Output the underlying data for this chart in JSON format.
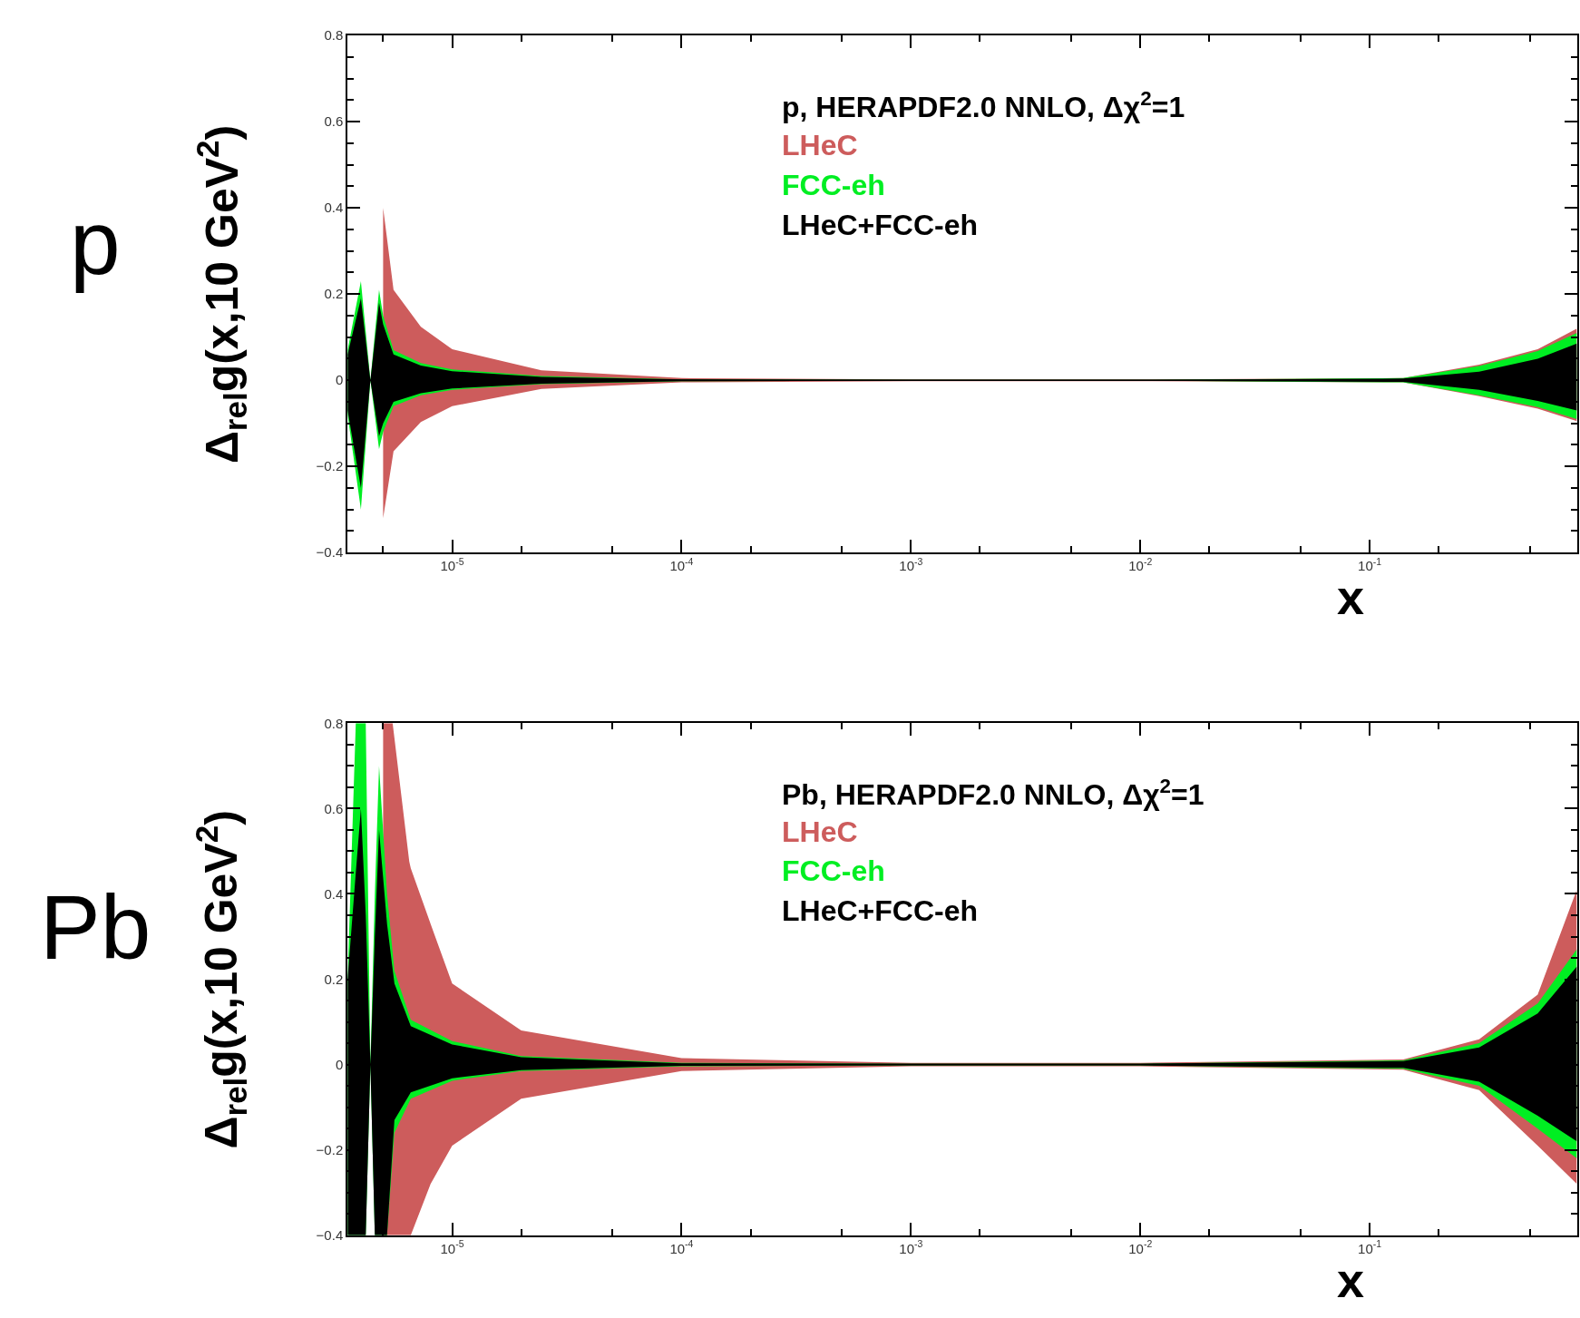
{
  "chart_data": [
    {
      "type": "line",
      "xlabel": "x",
      "ylabel": "Δ$_{rel}$g(x,10 GeV$^{2}$)",
      "annotations": [
        "p",
        "p, HERAPDF2.0 NNLO, Δχ$^{2}$=1"
      ],
      "log": "x",
      "xlim": [
        3.5e-06,
        0.8
      ],
      "ylim": [
        -0.4,
        0.8
      ],
      "xticks": [
        {
          "value": 1e-05,
          "label": "10$^{-5}$"
        },
        {
          "value": 0.0001,
          "label": "10$^{-4}$"
        },
        {
          "value": 0.001,
          "label": "10$^{-3}$"
        },
        {
          "value": 0.01,
          "label": "10$^{-2}$"
        },
        {
          "value": 0.1,
          "label": "10$^{-1}$"
        }
      ],
      "yticks": [
        -0.4,
        -0.2,
        0,
        0.2,
        0.4,
        0.6,
        0.8
      ],
      "series": [
        {
          "name": "LHeC",
          "color": "#cd5c5c",
          "x": [
            5e-06,
            5.55e-06,
            7.3e-06,
            1e-05,
            2.45e-05,
            0.0001,
            0.001,
            0.01,
            0.14,
            0.3,
            0.54,
            0.8
          ],
          "values": [
            null,
            null,
            null,
            null,
            null,
            null,
            null,
            null,
            null,
            null,
            null,
            null
          ],
          "upper": [
            0.4,
            0.21,
            0.124,
            0.072,
            0.023,
            0.005,
            0.002,
            0.002,
            0.005,
            0.036,
            0.072,
            0.12
          ],
          "lower": [
            -0.32,
            -0.165,
            -0.097,
            -0.06,
            -0.02,
            -0.005,
            -0.002,
            -0.002,
            -0.005,
            -0.037,
            -0.066,
            -0.095
          ]
        },
        {
          "name": "FCC-eh",
          "color": "#00ee22",
          "x": [
            3.5e-06,
            4e-06,
            4.4e-06,
            4.8e-06,
            5e-06,
            5.55e-06,
            7.3e-06,
            1e-05,
            2.45e-05,
            0.0001,
            0.001,
            0.01,
            0.14,
            0.3,
            0.54,
            0.8
          ],
          "values": [
            null,
            null,
            null,
            null,
            null,
            null,
            null,
            null,
            null,
            null,
            null,
            null,
            null,
            null,
            null,
            null
          ],
          "upper": [
            0.07,
            0.23,
            0,
            0.21,
            0.15,
            0.07,
            0.04,
            0.025,
            0.01,
            0.002,
            0.001,
            0.001,
            0.005,
            0.033,
            0.068,
            0.11
          ],
          "lower": [
            -0.08,
            -0.3,
            0,
            -0.16,
            -0.12,
            -0.06,
            -0.035,
            -0.022,
            -0.009,
            -0.002,
            -0.001,
            -0.001,
            -0.005,
            -0.035,
            -0.062,
            -0.09
          ]
        },
        {
          "name": "LHeC+FCC-eh",
          "color": "#000000",
          "x": [
            3.5e-06,
            4e-06,
            4.4e-06,
            4.8e-06,
            5e-06,
            5.55e-06,
            7.3e-06,
            1e-05,
            2.45e-05,
            0.0001,
            0.001,
            0.01,
            0.14,
            0.3,
            0.54,
            0.8
          ],
          "values": [
            0,
            0,
            0,
            0,
            0,
            0,
            0,
            0,
            0,
            0,
            0,
            0,
            0,
            0,
            0,
            0
          ],
          "upper": [
            0.06,
            0.19,
            0,
            0.18,
            0.13,
            0.06,
            0.034,
            0.021,
            0.008,
            0.002,
            0.001,
            0.001,
            0.004,
            0.02,
            0.05,
            0.085
          ],
          "lower": [
            -0.07,
            -0.25,
            0,
            -0.13,
            -0.1,
            -0.05,
            -0.03,
            -0.019,
            -0.008,
            -0.002,
            -0.001,
            -0.001,
            -0.004,
            -0.022,
            -0.048,
            -0.07
          ]
        }
      ]
    },
    {
      "type": "line",
      "xlabel": "x",
      "ylabel": "Δ$_{rel}$g(x,10 GeV$^{2}$)",
      "annotations": [
        "Pb",
        "Pb, HERAPDF2.0 NNLO, Δχ$^{2}$=1"
      ],
      "log": "x",
      "xlim": [
        3.5e-06,
        0.8
      ],
      "ylim": [
        -0.4,
        0.8
      ],
      "xticks": [
        {
          "value": 1e-05,
          "label": "10$^{-5}$"
        },
        {
          "value": 0.0001,
          "label": "10$^{-4}$"
        },
        {
          "value": 0.001,
          "label": "10$^{-3}$"
        },
        {
          "value": 0.01,
          "label": "10$^{-2}$"
        },
        {
          "value": 0.1,
          "label": "10$^{-1}$"
        }
      ],
      "yticks": [
        -0.4,
        -0.2,
        0,
        0.2,
        0.4,
        0.6,
        0.8
      ],
      "series": [
        {
          "name": "LHeC",
          "color": "#cd5c5c",
          "x": [
            5e-06,
            5.5e-06,
            6.5e-06,
            6.6e-06,
            8.05e-06,
            1e-05,
            2e-05,
            0.0001,
            0.001,
            0.01,
            0.14,
            0.3,
            0.54,
            0.8
          ],
          "values": [
            null,
            null,
            null,
            null,
            null,
            null,
            null,
            null,
            null,
            null,
            null,
            null,
            null,
            null
          ],
          "upper": [
            0.8,
            0.8,
            0.476,
            0.46,
            0.33,
            0.19,
            0.08,
            0.015,
            0.004,
            0.004,
            0.012,
            0.059,
            0.164,
            0.41
          ],
          "lower": [
            -0.4,
            -0.4,
            -0.4,
            -0.4,
            -0.28,
            -0.19,
            -0.08,
            -0.015,
            -0.004,
            -0.004,
            -0.012,
            -0.06,
            -0.19,
            -0.28
          ]
        },
        {
          "name": "FCC-eh",
          "color": "#00ee22",
          "x": [
            3.5e-06,
            3.8e-06,
            4e-06,
            4.2e-06,
            4.4e-06,
            4.6e-06,
            4.8e-06,
            5.2e-06,
            5.6e-06,
            6.6e-06,
            1e-05,
            2e-05,
            0.0001,
            0.001,
            0.01,
            0.14,
            0.3,
            0.54,
            0.8
          ],
          "values": [
            null,
            null,
            null,
            null,
            null,
            null,
            null,
            null,
            null,
            null,
            null,
            null,
            null,
            null,
            null,
            null,
            null,
            null,
            null
          ],
          "upper": [
            0.2,
            0.8,
            0.8,
            0.8,
            0,
            0.4,
            0.7,
            0.4,
            0.22,
            0.105,
            0.055,
            0.02,
            0.004,
            0.002,
            0.002,
            0.01,
            0.05,
            0.143,
            0.27
          ],
          "lower": [
            -0.4,
            -0.4,
            -0.4,
            -0.4,
            0,
            -0.4,
            -0.4,
            -0.4,
            -0.16,
            -0.08,
            -0.038,
            -0.015,
            -0.004,
            -0.002,
            -0.002,
            -0.01,
            -0.05,
            -0.15,
            -0.22
          ]
        },
        {
          "name": "LHeC+FCC-eh",
          "color": "#000000",
          "x": [
            3.5e-06,
            3.8e-06,
            4e-06,
            4.2e-06,
            4.4e-06,
            4.6e-06,
            4.8e-06,
            5.2e-06,
            5.6e-06,
            6.6e-06,
            1e-05,
            2e-05,
            0.0001,
            0.001,
            0.01,
            0.14,
            0.3,
            0.54,
            0.8
          ],
          "values": [
            0,
            0,
            0,
            0,
            0,
            0,
            0,
            0,
            0,
            0,
            0,
            0,
            0,
            0,
            0,
            0,
            0,
            0,
            0
          ],
          "upper": [
            0.2,
            0.45,
            0.6,
            0.35,
            0,
            0.3,
            0.55,
            0.33,
            0.19,
            0.09,
            0.047,
            0.017,
            0.003,
            0.002,
            0.002,
            0.008,
            0.04,
            0.12,
            0.23
          ],
          "lower": [
            -0.4,
            -0.4,
            -0.4,
            -0.4,
            0,
            -0.4,
            -0.4,
            -0.4,
            -0.13,
            -0.065,
            -0.032,
            -0.013,
            -0.003,
            -0.002,
            -0.002,
            -0.008,
            -0.04,
            -0.12,
            -0.18
          ]
        }
      ]
    }
  ]
}
